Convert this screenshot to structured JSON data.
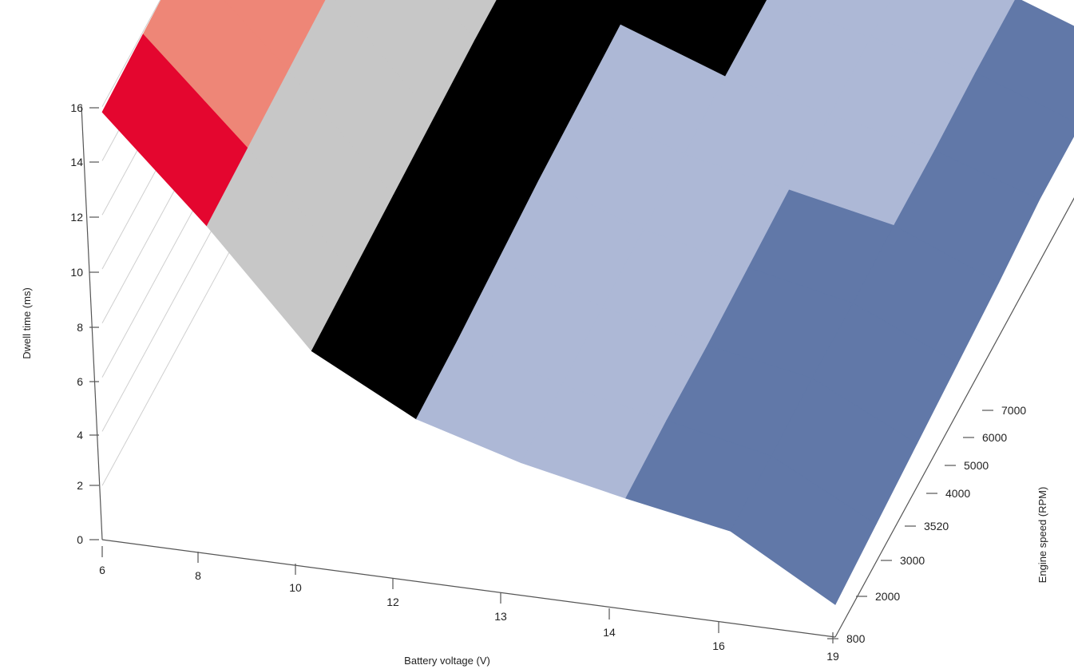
{
  "chart_data": {
    "type": "surface",
    "xlabel": "Battery voltage (V)",
    "ylabel": "Engine speed (RPM)",
    "zlabel": "Dwell time (ms)",
    "x_categories": [
      "6",
      "8",
      "10",
      "12",
      "13",
      "14",
      "16",
      "19"
    ],
    "y_categories": [
      "800",
      "2000",
      "3000",
      "3520",
      "4000",
      "5000",
      "6000",
      "7000"
    ],
    "z_ticks": [
      "0",
      "2",
      "4",
      "6",
      "8",
      "10",
      "12",
      "14",
      "16"
    ],
    "zlim": [
      0,
      16
    ],
    "bands": [
      {
        "range": "14-16",
        "color": "#ee8677"
      },
      {
        "range": "12-14",
        "color": "#e4062f"
      },
      {
        "range": "10-12",
        "color": "#c7c7c7"
      },
      {
        "range": "8-10",
        "color": "#878787"
      },
      {
        "range": "6-8",
        "color": "#000000"
      },
      {
        "range": "4-6",
        "color": "#adb8d6"
      },
      {
        "range": "2-4",
        "color": "#6178a8"
      },
      {
        "range": "0-2",
        "color": "#003876"
      }
    ],
    "values": [
      [
        15.8,
        15.9,
        16.0,
        15.9,
        15.9,
        15.9,
        15.9,
        16.0
      ],
      [
        12.1,
        12.2,
        12.3,
        12.4,
        12.4,
        12.5,
        12.6,
        12.6
      ],
      [
        8.0,
        8.1,
        8.2,
        8.3,
        8.4,
        8.4,
        8.5,
        8.5
      ],
      [
        6.0,
        6.1,
        6.3,
        6.5,
        6.6,
        6.7,
        6.8,
        6.8
      ],
      [
        4.9,
        5.0,
        5.1,
        5.2,
        5.2,
        5.3,
        5.3,
        5.4
      ],
      [
        4.1,
        4.2,
        4.2,
        4.3,
        4.4,
        4.4,
        4.5,
        4.5
      ],
      [
        3.4,
        3.4,
        3.5,
        3.5,
        3.6,
        3.6,
        3.7,
        3.7
      ],
      [
        1.2,
        1.4,
        1.6,
        1.8,
        2.0,
        2.3,
        2.3,
        2.3
      ]
    ]
  }
}
